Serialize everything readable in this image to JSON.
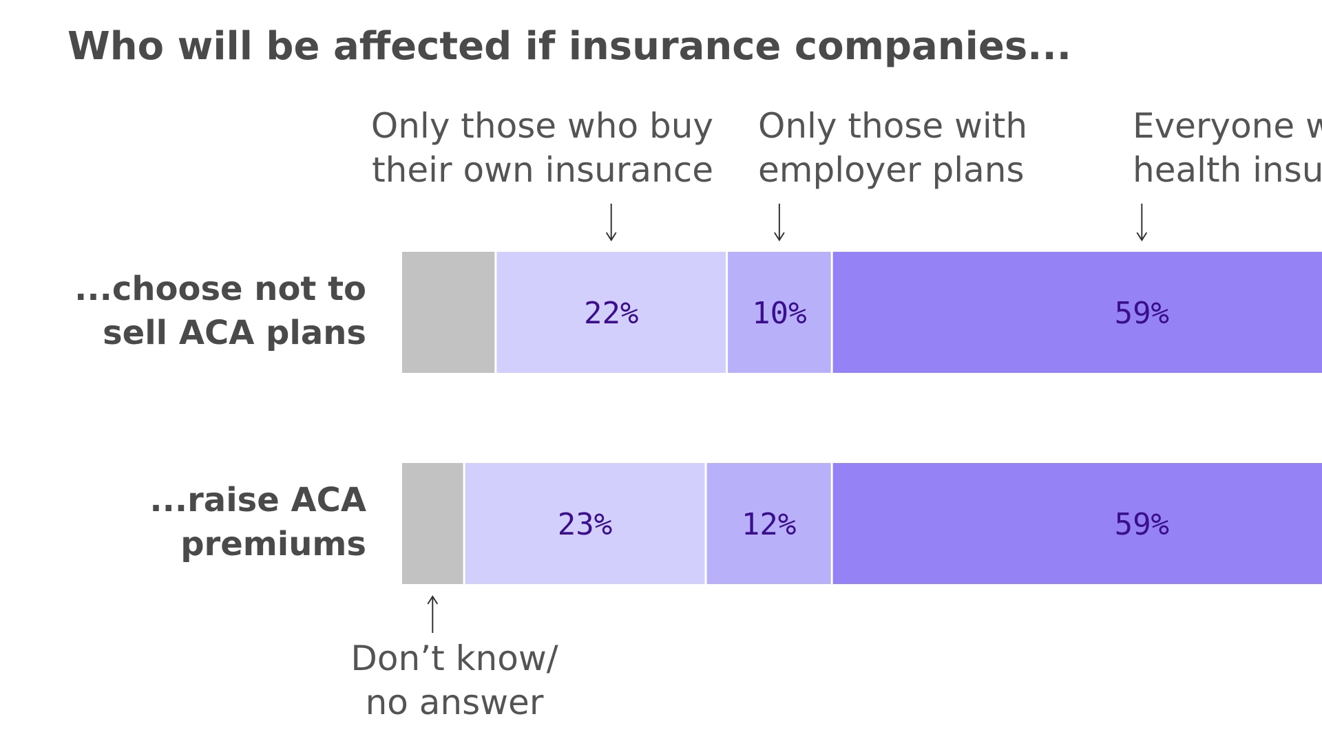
{
  "chart_data": {
    "type": "bar",
    "orientation": "horizontal-stacked",
    "title": "Who will be affected if insurance companies...",
    "categories": [
      [
        "...choose not to",
        "sell ACA plans"
      ],
      [
        "...raise ACA",
        "premiums"
      ]
    ],
    "series": [
      {
        "name": "Don’t know/ no answer",
        "legend_lines": [
          "Don’t know/",
          "no answer"
        ],
        "color": "#c2c2c2",
        "values": [
          9,
          6
        ]
      },
      {
        "name": "Only those who buy their own insurance",
        "legend_lines": [
          "Only those who buy",
          "their own insurance"
        ],
        "color": "#d2cffc",
        "values": [
          22,
          23
        ]
      },
      {
        "name": "Only those with employer plans",
        "legend_lines": [
          "Only those with",
          "employer plans"
        ],
        "color": "#b8b1fa",
        "values": [
          10,
          12
        ]
      },
      {
        "name": "Everyone with health insurance",
        "legend_lines": [
          "Everyone with",
          "health insurance"
        ],
        "color": "#9583f5",
        "values": [
          59,
          59
        ]
      }
    ],
    "value_labels": [
      [
        null,
        "22%",
        "10%",
        "59%"
      ],
      [
        null,
        "23%",
        "12%",
        "59%"
      ]
    ],
    "xlim": [
      0,
      100
    ],
    "xlabel": "",
    "ylabel": "",
    "grid": false,
    "legend": "top-annotations"
  }
}
